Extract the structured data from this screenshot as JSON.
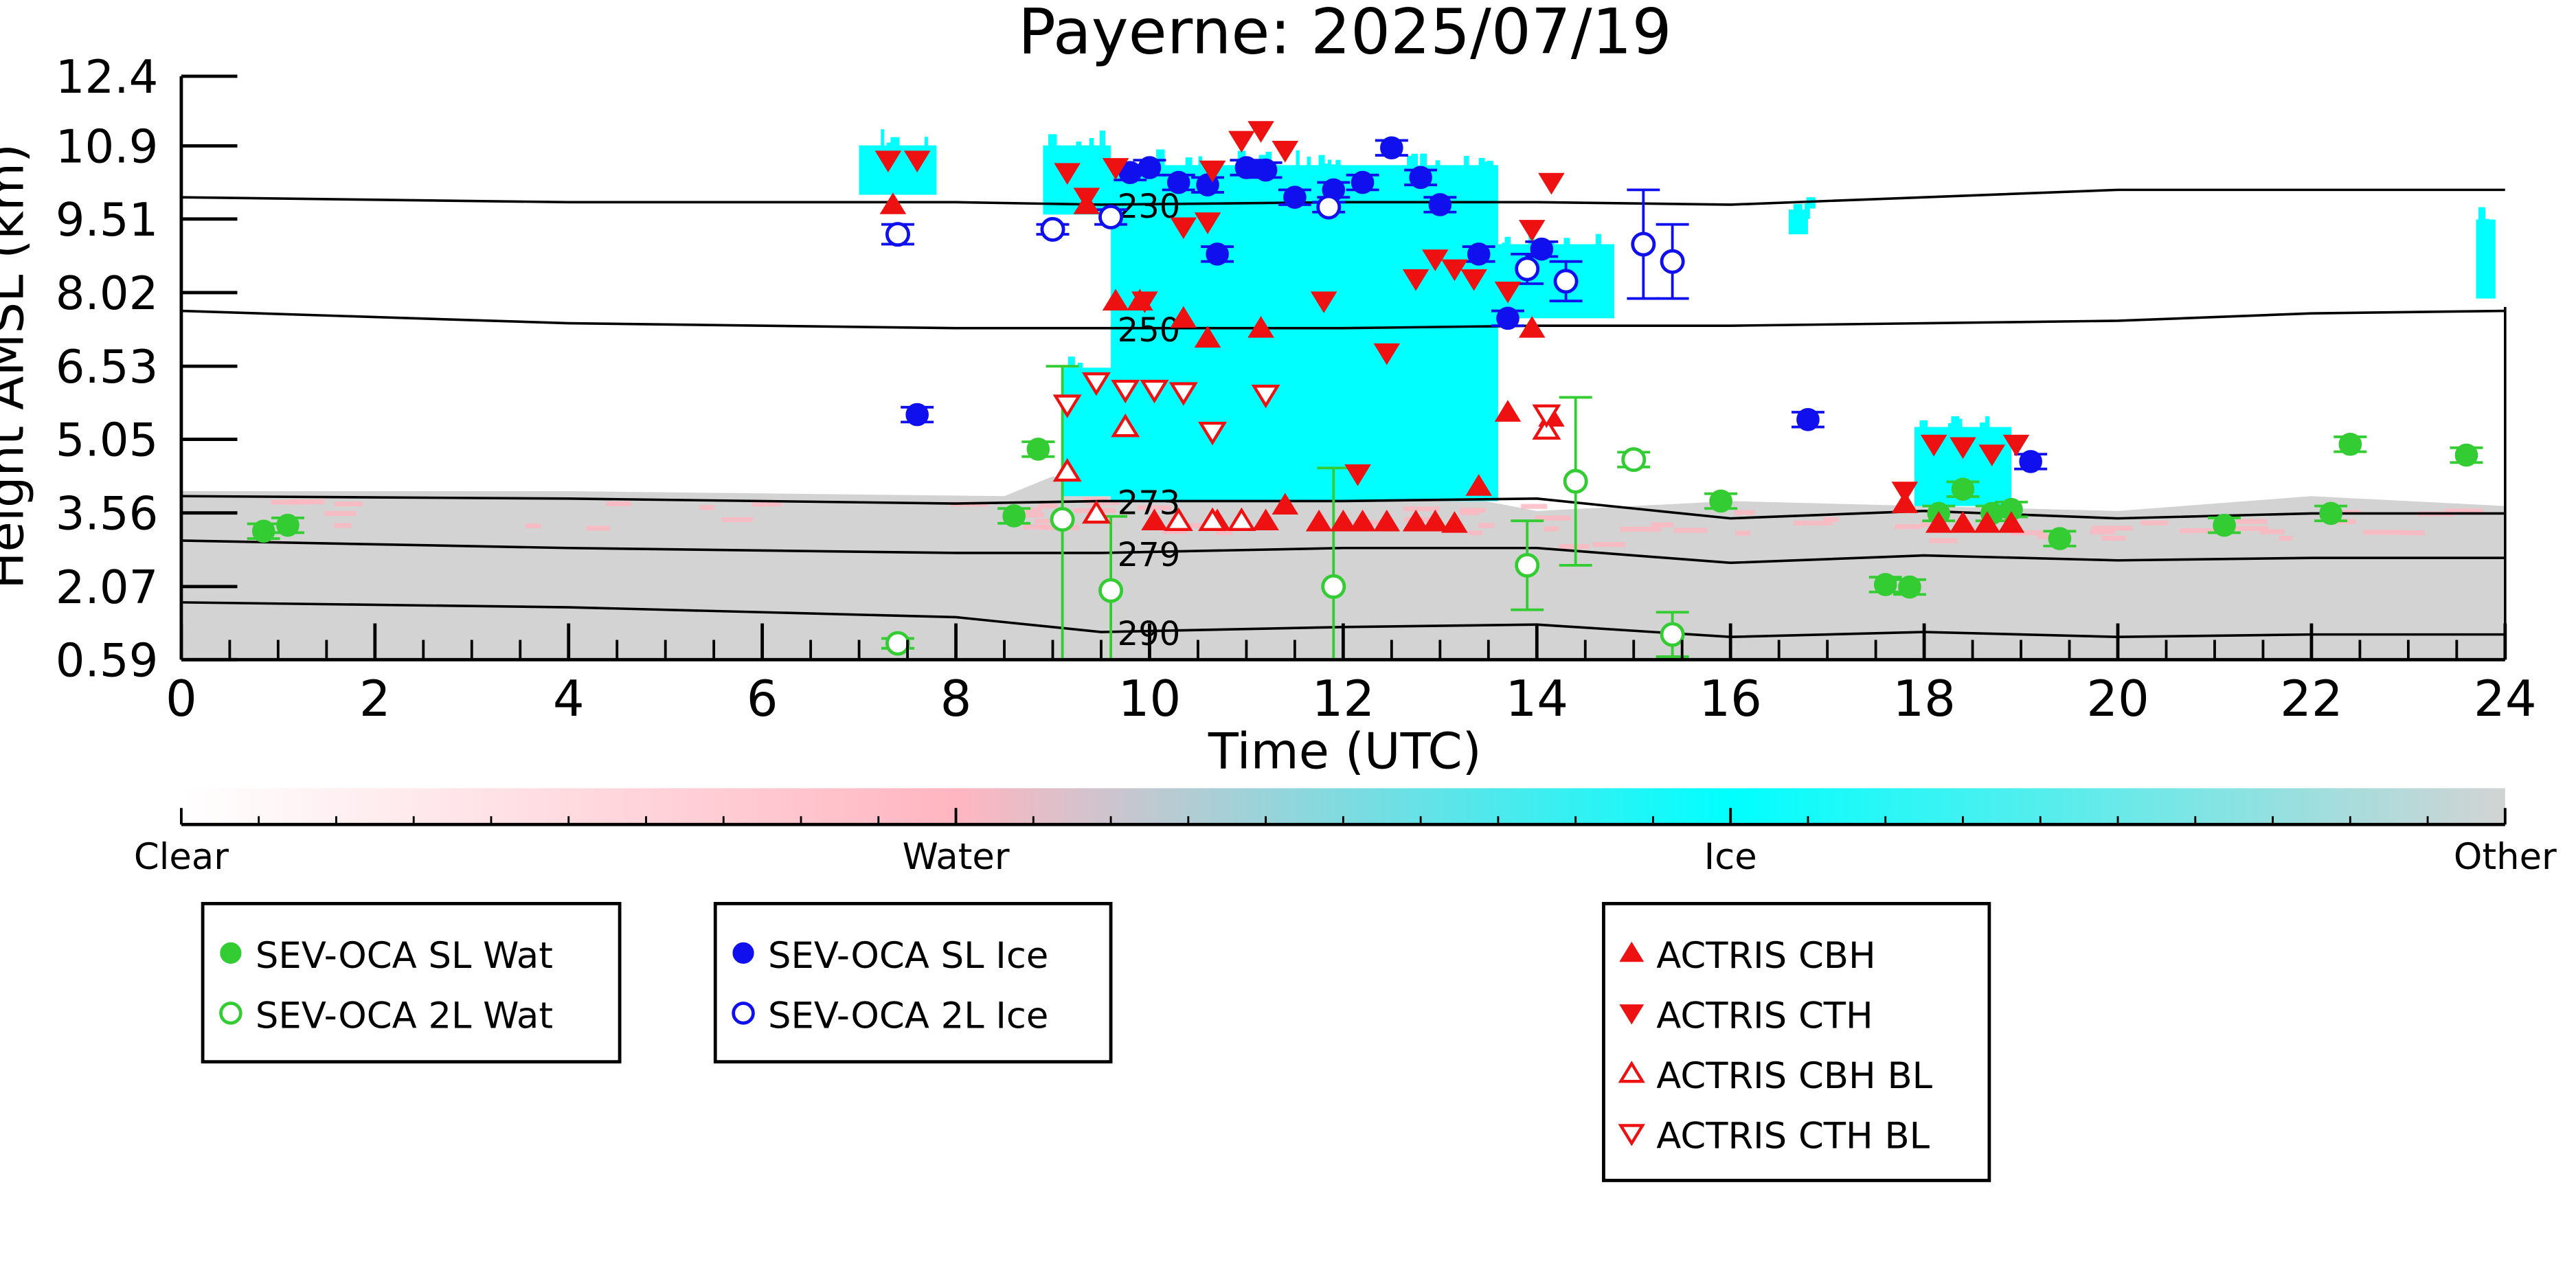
{
  "chart_data": {
    "type": "scatter",
    "title": "Payerne: 2025/07/19",
    "xlabel": "Time (UTC)",
    "ylabel": "Height AMSL (km)",
    "xlim": [
      0,
      24
    ],
    "ylim": [
      0.59,
      12.4
    ],
    "xticks": [
      "0",
      "2",
      "4",
      "6",
      "8",
      "10",
      "12",
      "14",
      "16",
      "18",
      "20",
      "22",
      "24"
    ],
    "yticks": [
      "0.59",
      "2.07",
      "3.56",
      "5.05",
      "6.53",
      "8.02",
      "9.51",
      "10.9",
      "12.4"
    ],
    "ytick_values": [
      0.59,
      2.07,
      3.56,
      5.05,
      6.53,
      8.02,
      9.51,
      10.99,
      12.4
    ],
    "colorbar": {
      "colors": [
        "#ffffff",
        "#ffb6c1",
        "#00ffff",
        "#d3d3d3"
      ],
      "labels": [
        "Clear",
        "Water",
        "Ice",
        "Other"
      ]
    },
    "background_classification": {
      "other_top_km": [
        [
          0,
          4.0
        ],
        [
          4,
          4.0
        ],
        [
          8.5,
          3.9
        ],
        [
          9,
          4.3
        ],
        [
          10,
          3.9
        ],
        [
          13.2,
          3.9
        ],
        [
          14,
          3.6
        ],
        [
          16,
          3.8
        ],
        [
          18,
          3.7
        ],
        [
          20,
          3.6
        ],
        [
          22,
          3.9
        ],
        [
          24,
          3.7
        ]
      ],
      "ice_regions_km": [
        {
          "x": [
            7.0,
            7.8
          ],
          "y": [
            10.0,
            11.0
          ]
        },
        {
          "x": [
            8.9,
            9.6
          ],
          "y": [
            9.6,
            11.0
          ]
        },
        {
          "x": [
            9.1,
            9.8
          ],
          "y": [
            3.9,
            6.5
          ]
        },
        {
          "x": [
            9.6,
            13.6
          ],
          "y": [
            3.8,
            10.6
          ]
        },
        {
          "x": [
            13.6,
            14.8
          ],
          "y": [
            7.5,
            9.0
          ]
        },
        {
          "x": [
            17.9,
            18.9
          ],
          "y": [
            3.7,
            5.3
          ]
        },
        {
          "x": [
            16.6,
            16.8
          ],
          "y": [
            9.2,
            9.7
          ]
        },
        {
          "x": [
            23.7,
            23.9
          ],
          "y": [
            7.9,
            9.5
          ]
        }
      ]
    },
    "isotherms": [
      {
        "label": "230",
        "x": [
          0,
          4,
          8,
          9.5,
          12,
          14,
          16,
          18,
          20,
          22,
          24
        ],
        "y": [
          9.95,
          9.85,
          9.85,
          9.8,
          9.85,
          9.85,
          9.8,
          9.95,
          10.1,
          10.1,
          10.1
        ]
      },
      {
        "label": "250",
        "x": [
          0,
          4,
          8,
          9.5,
          12,
          14,
          16,
          18,
          20,
          22,
          24
        ],
        "y": [
          7.65,
          7.4,
          7.3,
          7.3,
          7.3,
          7.35,
          7.35,
          7.4,
          7.45,
          7.6,
          7.65
        ]
      },
      {
        "label": "273",
        "x": [
          0,
          4,
          8,
          9.5,
          12,
          14,
          16,
          18,
          20,
          22,
          24
        ],
        "y": [
          3.9,
          3.85,
          3.75,
          3.8,
          3.8,
          3.85,
          3.45,
          3.6,
          3.45,
          3.55,
          3.55
        ]
      },
      {
        "label": "279",
        "x": [
          0,
          4,
          8,
          9.5,
          12,
          14,
          16,
          18,
          20,
          22,
          24
        ],
        "y": [
          3.0,
          2.85,
          2.75,
          2.75,
          2.85,
          2.85,
          2.55,
          2.7,
          2.6,
          2.65,
          2.65
        ]
      },
      {
        "label": "290",
        "x": [
          0,
          4,
          8,
          9.5,
          12,
          14,
          16,
          18,
          20,
          22,
          24
        ],
        "y": [
          1.75,
          1.65,
          1.45,
          1.15,
          1.25,
          1.3,
          1.05,
          1.15,
          1.05,
          1.1,
          1.1
        ]
      }
    ],
    "series": [
      {
        "name": "SEV-OCA SL Wat",
        "marker": "circle-filled",
        "color": "#33cc33",
        "points": [
          [
            0.85,
            3.19,
            0.15
          ],
          [
            1.1,
            3.31,
            0.15
          ],
          [
            7.4,
            0.92,
            0.1
          ],
          [
            8.6,
            3.5,
            0.15
          ],
          [
            8.85,
            4.85,
            0.15
          ],
          [
            15.9,
            3.8,
            0.15
          ],
          [
            17.6,
            2.11,
            0.15
          ],
          [
            17.85,
            2.06,
            0.15
          ],
          [
            18.15,
            3.55,
            0.15
          ],
          [
            18.4,
            4.04,
            0.15
          ],
          [
            18.7,
            3.55,
            0.15
          ],
          [
            18.9,
            3.63,
            0.15
          ],
          [
            19.4,
            3.04,
            0.15
          ],
          [
            21.1,
            3.31,
            0.15
          ],
          [
            22.2,
            3.55,
            0.15
          ],
          [
            22.4,
            4.95,
            0.15
          ],
          [
            23.6,
            4.73,
            0.15
          ]
        ]
      },
      {
        "name": "SEV-OCA 2L Wat",
        "marker": "circle-open",
        "color": "#33cc33",
        "points": [
          [
            7.4,
            0.92,
            0.1
          ],
          [
            9.1,
            3.43,
            3.1
          ],
          [
            9.6,
            1.99,
            1.5
          ],
          [
            11.9,
            2.07,
            2.4
          ],
          [
            13.9,
            2.5,
            0.9
          ],
          [
            14.4,
            4.2,
            1.7
          ],
          [
            15.0,
            4.64,
            0.15
          ],
          [
            15.4,
            1.1,
            0.45
          ]
        ]
      },
      {
        "name": "SEV-OCA SL Ice",
        "marker": "circle-filled",
        "color": "#1010ee",
        "points": [
          [
            7.6,
            5.55,
            0.15
          ],
          [
            9.8,
            10.45,
            0.15
          ],
          [
            10.0,
            10.55,
            0.15
          ],
          [
            10.3,
            10.25,
            0.15
          ],
          [
            10.6,
            10.2,
            0.15
          ],
          [
            10.7,
            8.8,
            0.15
          ],
          [
            11.0,
            10.55,
            0.15
          ],
          [
            11.2,
            10.5,
            0.15
          ],
          [
            11.5,
            9.95,
            0.15
          ],
          [
            11.9,
            10.1,
            0.15
          ],
          [
            12.2,
            10.25,
            0.15
          ],
          [
            12.5,
            10.95,
            0.15
          ],
          [
            12.8,
            10.35,
            0.15
          ],
          [
            13.0,
            9.8,
            0.15
          ],
          [
            13.4,
            8.8,
            0.15
          ],
          [
            13.7,
            7.5,
            0.15
          ],
          [
            14.05,
            8.9,
            0.15
          ],
          [
            16.8,
            5.45,
            0.15
          ],
          [
            19.1,
            4.6,
            0.15
          ]
        ]
      },
      {
        "name": "SEV-OCA 2L Ice",
        "marker": "circle-open",
        "color": "#1010ee",
        "points": [
          [
            7.4,
            9.2,
            0.2
          ],
          [
            9.0,
            9.3,
            0.1
          ],
          [
            9.6,
            9.55,
            0.15
          ],
          [
            11.85,
            9.75,
            0.1
          ],
          [
            13.9,
            8.5,
            0.3
          ],
          [
            14.3,
            8.25,
            0.4
          ],
          [
            15.1,
            9.0,
            1.1
          ],
          [
            15.4,
            8.65,
            0.75
          ]
        ]
      },
      {
        "name": "ACTRIS CBH",
        "marker": "triangle-up-filled",
        "color": "#ee1111",
        "points": [
          [
            7.35,
            9.8
          ],
          [
            9.35,
            9.8
          ],
          [
            9.65,
            7.85
          ],
          [
            9.9,
            7.85
          ],
          [
            10.05,
            3.4
          ],
          [
            10.35,
            7.5
          ],
          [
            10.6,
            7.1
          ],
          [
            10.7,
            3.4
          ],
          [
            10.95,
            3.4
          ],
          [
            11.15,
            7.3
          ],
          [
            11.2,
            3.4
          ],
          [
            11.4,
            3.72
          ],
          [
            11.75,
            3.38
          ],
          [
            12.0,
            3.38
          ],
          [
            12.2,
            3.38
          ],
          [
            12.45,
            3.38
          ],
          [
            12.75,
            3.38
          ],
          [
            12.95,
            3.38
          ],
          [
            13.15,
            3.35
          ],
          [
            13.4,
            4.1
          ],
          [
            13.7,
            5.6
          ],
          [
            13.95,
            7.3
          ],
          [
            14.15,
            5.5
          ],
          [
            17.8,
            3.75
          ],
          [
            18.15,
            3.35
          ],
          [
            18.4,
            3.35
          ],
          [
            18.65,
            3.35
          ],
          [
            18.9,
            3.35
          ]
        ]
      },
      {
        "name": "ACTRIS CTH",
        "marker": "triangle-down-filled",
        "color": "#ee1111",
        "points": [
          [
            7.3,
            10.7
          ],
          [
            7.6,
            10.7
          ],
          [
            9.15,
            10.45
          ],
          [
            9.35,
            9.95
          ],
          [
            9.65,
            10.55
          ],
          [
            9.95,
            7.85
          ],
          [
            10.35,
            9.35
          ],
          [
            10.6,
            9.45
          ],
          [
            10.65,
            10.5
          ],
          [
            10.95,
            11.1
          ],
          [
            11.15,
            11.3
          ],
          [
            11.4,
            10.9
          ],
          [
            11.8,
            7.85
          ],
          [
            12.15,
            4.35
          ],
          [
            12.45,
            6.8
          ],
          [
            12.75,
            8.3
          ],
          [
            12.95,
            8.7
          ],
          [
            13.15,
            8.5
          ],
          [
            13.35,
            8.3
          ],
          [
            13.7,
            8.05
          ],
          [
            13.95,
            9.3
          ],
          [
            14.15,
            10.25
          ],
          [
            17.8,
            4.0
          ],
          [
            18.1,
            4.95
          ],
          [
            18.4,
            4.9
          ],
          [
            18.7,
            4.75
          ],
          [
            18.95,
            4.95
          ]
        ]
      },
      {
        "name": "ACTRIS CBH BL",
        "marker": "triangle-up-open",
        "color": "#ee1111",
        "points": [
          [
            9.15,
            4.4
          ],
          [
            9.45,
            3.55
          ],
          [
            9.75,
            5.3
          ],
          [
            10.3,
            3.4
          ],
          [
            10.65,
            3.4
          ],
          [
            10.95,
            3.4
          ],
          [
            14.1,
            5.25
          ]
        ]
      },
      {
        "name": "ACTRIS CTH BL",
        "marker": "triangle-down-open",
        "color": "#ee1111",
        "points": [
          [
            9.15,
            5.75
          ],
          [
            9.45,
            6.2
          ],
          [
            9.75,
            6.05
          ],
          [
            10.05,
            6.05
          ],
          [
            10.35,
            6.0
          ],
          [
            10.65,
            5.2
          ],
          [
            11.2,
            5.95
          ],
          [
            14.1,
            5.55
          ]
        ]
      }
    ],
    "legend_groups": [
      [
        "SEV-OCA SL Wat",
        "SEV-OCA 2L Wat"
      ],
      [
        "SEV-OCA SL Ice",
        "SEV-OCA 2L Ice"
      ],
      [
        "ACTRIS CBH",
        "ACTRIS CTH",
        "ACTRIS CBH BL",
        "ACTRIS CTH BL"
      ]
    ],
    "grid": false
  }
}
